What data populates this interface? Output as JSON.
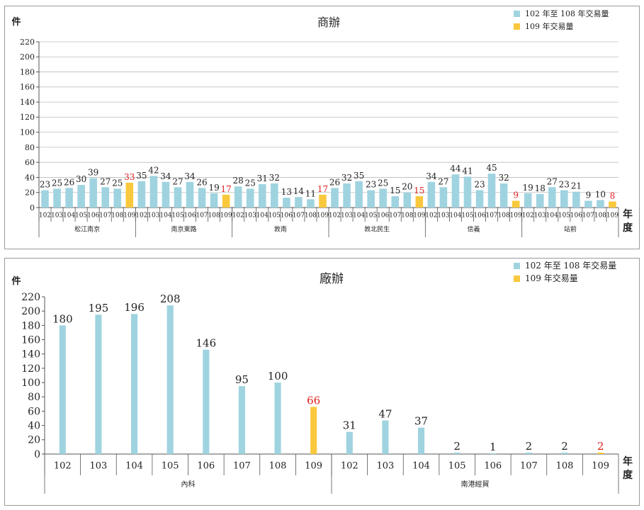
{
  "colors": {
    "base": "#9fd3e0",
    "highlight": "#f9c83c",
    "red_label": "#e02020",
    "grid": "#bdbdbd",
    "axis": "#555555"
  },
  "chart_data": [
    {
      "type": "bar",
      "title": "商辦",
      "ylabel": "件",
      "xlabel": "年度",
      "ylim": [
        0,
        220
      ],
      "yticks": [
        0,
        20,
        40,
        60,
        80,
        100,
        120,
        140,
        160,
        180,
        200,
        220
      ],
      "grid": true,
      "legend": {
        "position": "top-right",
        "entries": [
          {
            "label": "102 年至 108 年交易量",
            "color": "#9fd3e0"
          },
          {
            "label": "109 年交易量",
            "color": "#f9c83c"
          }
        ]
      },
      "groups": [
        {
          "name": "松江南京",
          "years": [
            "102",
            "103",
            "104",
            "105",
            "106",
            "107",
            "108",
            "109"
          ],
          "values": [
            23,
            25,
            26,
            30,
            39,
            27,
            25,
            33
          ]
        },
        {
          "name": "南京東路",
          "years": [
            "102",
            "103",
            "104",
            "105",
            "106",
            "107",
            "108",
            "109"
          ],
          "values": [
            35,
            42,
            34,
            27,
            34,
            26,
            19,
            17
          ]
        },
        {
          "name": "敦南",
          "years": [
            "102",
            "103",
            "104",
            "105",
            "106",
            "107",
            "108",
            "109"
          ],
          "values": [
            28,
            25,
            31,
            32,
            13,
            14,
            11,
            17
          ]
        },
        {
          "name": "敦北民生",
          "years": [
            "102",
            "103",
            "104",
            "105",
            "106",
            "107",
            "108",
            "109"
          ],
          "values": [
            26,
            32,
            35,
            23,
            25,
            15,
            20,
            15
          ]
        },
        {
          "name": "信義",
          "years": [
            "102",
            "103",
            "104",
            "105",
            "106",
            "107",
            "108",
            "109"
          ],
          "values": [
            34,
            27,
            44,
            41,
            23,
            45,
            32,
            9
          ]
        },
        {
          "name": "站前",
          "years": [
            "102",
            "103",
            "104",
            "105",
            "106",
            "107",
            "108",
            "109"
          ],
          "values": [
            19,
            18,
            27,
            23,
            21,
            9,
            10,
            8
          ]
        }
      ]
    },
    {
      "type": "bar",
      "title": "廠辦",
      "ylabel": "件",
      "xlabel": "年度",
      "ylim": [
        0,
        220
      ],
      "yticks": [
        0,
        20,
        40,
        60,
        80,
        100,
        120,
        140,
        160,
        180,
        200,
        220
      ],
      "grid": false,
      "legend": {
        "position": "top-right",
        "entries": [
          {
            "label": "102 年至 108 年交易量",
            "color": "#9fd3e0"
          },
          {
            "label": "109 年交易量",
            "color": "#f9c83c"
          }
        ]
      },
      "groups": [
        {
          "name": "內科",
          "years": [
            "102",
            "103",
            "104",
            "105",
            "106",
            "107",
            "108",
            "109"
          ],
          "values": [
            180,
            195,
            196,
            208,
            146,
            95,
            100,
            66
          ]
        },
        {
          "name": "南港經貿",
          "years": [
            "102",
            "103",
            "104",
            "105",
            "106",
            "107",
            "108",
            "109"
          ],
          "values": [
            31,
            47,
            37,
            2,
            1,
            2,
            2,
            2
          ]
        }
      ]
    }
  ]
}
